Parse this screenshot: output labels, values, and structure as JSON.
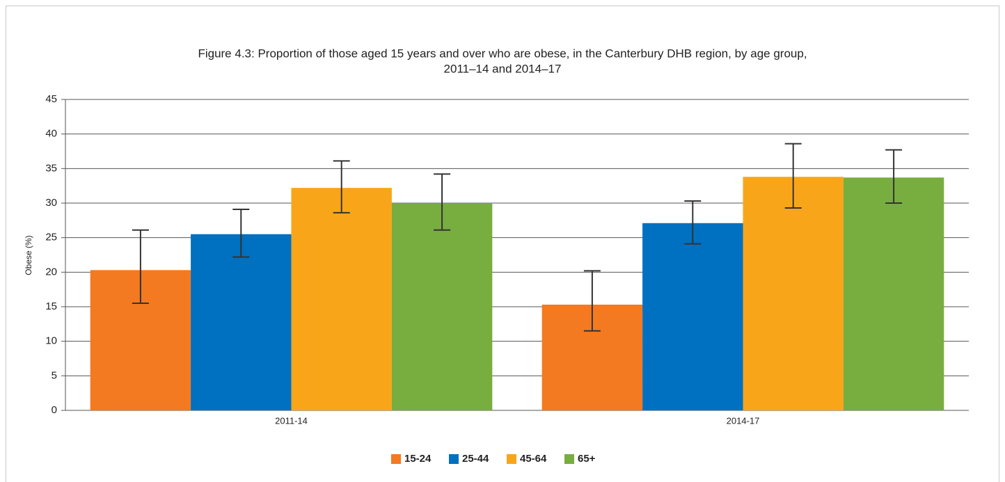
{
  "chart_data": {
    "type": "bar",
    "title": [
      "Figure 4.3: Proportion of those aged 15 years and over who are obese, in the Canterbury DHB region, by age group,",
      "2011–14 and 2014–17"
    ],
    "y_label": "Obese (%)",
    "categories": [
      "2011-14",
      "2014-17"
    ],
    "series": [
      {
        "name": "15-24",
        "color": "#f37a20",
        "values": [
          20.3,
          15.3
        ],
        "lower": [
          15.5,
          11.5
        ],
        "upper": [
          26.1,
          20.2
        ]
      },
      {
        "name": "25-44",
        "color": "#0070c0",
        "values": [
          25.5,
          27.1
        ],
        "lower": [
          22.2,
          24.1
        ],
        "upper": [
          29.1,
          30.3
        ]
      },
      {
        "name": "45-64",
        "color": "#f9a51a",
        "values": [
          32.2,
          33.8
        ],
        "lower": [
          28.6,
          29.3
        ],
        "upper": [
          36.1,
          38.6
        ]
      },
      {
        "name": "65+",
        "color": "#78ad3f",
        "values": [
          30.0,
          33.7
        ],
        "lower": [
          26.1,
          30.0
        ],
        "upper": [
          34.2,
          37.7
        ]
      }
    ],
    "ylim": [
      0,
      45
    ],
    "yticks": [
      0,
      5,
      10,
      15,
      20,
      25,
      30,
      35,
      40,
      45
    ],
    "grid": true,
    "legend": "bottom"
  }
}
